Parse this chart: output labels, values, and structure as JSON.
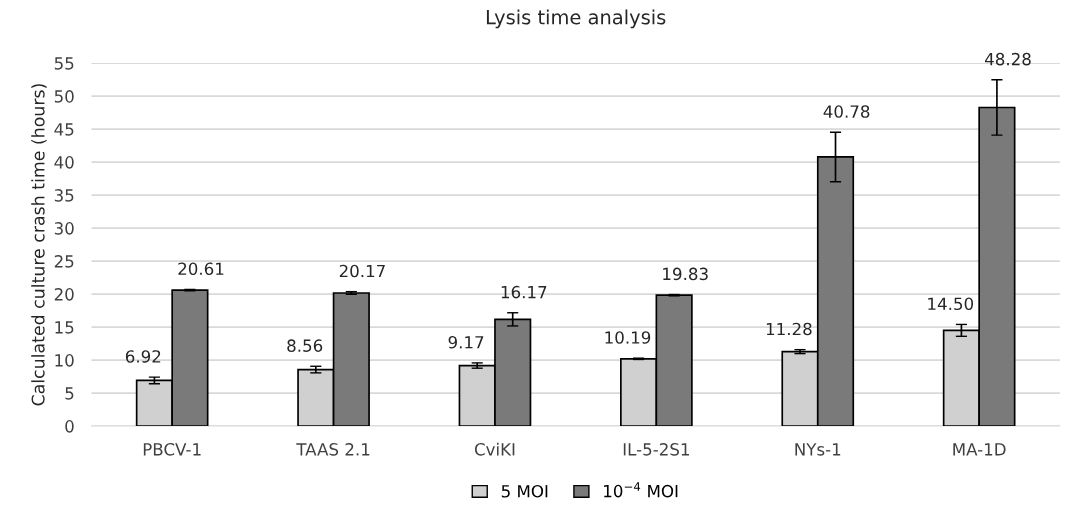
{
  "chart_data": {
    "type": "bar",
    "title": "Lysis time analysis",
    "ylabel": "Calculated culture crash time (hours)",
    "categories": [
      "PBCV-1",
      "TAAS 2.1",
      "CviKI",
      "IL-5-2S1",
      "NYs-1",
      "MA-1D"
    ],
    "series": [
      {
        "name": "5 MOI",
        "color": "#d0d0d0",
        "values": [
          6.92,
          8.56,
          9.17,
          10.19,
          11.28,
          14.5
        ],
        "value_labels": [
          "6.92",
          "8.56",
          "9.17",
          "10.19",
          "11.28",
          "14.50"
        ],
        "errors": [
          0.5,
          0.5,
          0.4,
          0.1,
          0.3,
          0.9
        ]
      },
      {
        "name": "10$^{−4}$ MOI",
        "color": "#7a7a7a",
        "values": [
          20.61,
          20.17,
          16.17,
          19.83,
          40.78,
          48.28
        ],
        "value_labels": [
          "20.61",
          "20.17",
          "16.17",
          "19.83",
          "40.78",
          "48.28"
        ],
        "errors": [
          0.1,
          0.2,
          1.0,
          0.1,
          3.75,
          4.2
        ]
      }
    ],
    "ylim": [
      0,
      55
    ],
    "yticks": [
      0,
      5,
      10,
      15,
      20,
      25,
      30,
      35,
      40,
      45,
      50,
      55
    ],
    "grid": "y",
    "legend": "bottom"
  }
}
